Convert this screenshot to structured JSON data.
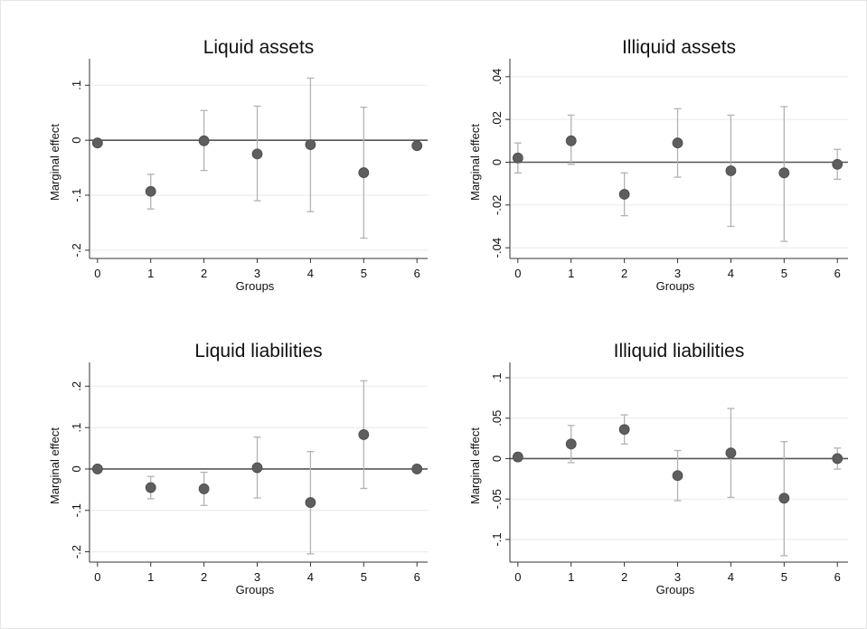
{
  "chart_data": [
    {
      "type": "scatter",
      "title": "Liquid assets",
      "xlabel": "Groups",
      "ylabel": "Marginal effect",
      "x": [
        0,
        1,
        2,
        3,
        4,
        5,
        6
      ],
      "xticks": [
        "0",
        "1",
        "2",
        "3",
        "4",
        "5",
        "6"
      ],
      "xlim": [
        -0.15,
        6.2
      ],
      "ylim": [
        -0.215,
        0.135
      ],
      "yticks": [
        0.1,
        0,
        -0.1,
        -0.2
      ],
      "ytick_labels": [
        ".1",
        "0",
        "-.1",
        "-.2"
      ],
      "estimates": [
        -0.005,
        -0.093,
        -0.001,
        -0.025,
        -0.008,
        -0.059,
        -0.01
      ],
      "ci_lower": [
        null,
        -0.125,
        -0.055,
        -0.11,
        -0.13,
        -0.178,
        null
      ],
      "ci_upper": [
        null,
        -0.062,
        0.054,
        0.062,
        0.113,
        0.06,
        null
      ],
      "reference_line": 0,
      "grid": true
    },
    {
      "type": "scatter",
      "title": "Illiquid assets",
      "xlabel": "Groups",
      "ylabel": "Marginal effect",
      "x": [
        0,
        1,
        2,
        3,
        4,
        5,
        6
      ],
      "xticks": [
        "0",
        "1",
        "2",
        "3",
        "4",
        "5",
        "6"
      ],
      "xlim": [
        -0.15,
        6.2
      ],
      "ylim": [
        -0.045,
        0.045
      ],
      "yticks": [
        0.04,
        0.02,
        0,
        -0.02,
        -0.04
      ],
      "ytick_labels": [
        ".04",
        ".02",
        "0",
        "-.02",
        "-.04"
      ],
      "estimates": [
        0.002,
        0.01,
        -0.015,
        0.009,
        -0.004,
        -0.005,
        -0.001
      ],
      "ci_lower": [
        -0.005,
        -0.001,
        -0.025,
        -0.007,
        -0.03,
        -0.037,
        -0.008
      ],
      "ci_upper": [
        0.009,
        0.022,
        -0.005,
        0.025,
        0.022,
        0.026,
        0.006
      ],
      "reference_line": 0,
      "grid": true
    },
    {
      "type": "scatter",
      "title": "Liquid liabilities",
      "xlabel": "Groups",
      "ylabel": "Marginal effect",
      "x": [
        0,
        1,
        2,
        3,
        4,
        5,
        6
      ],
      "xticks": [
        "0",
        "1",
        "2",
        "3",
        "4",
        "5",
        "6"
      ],
      "xlim": [
        -0.15,
        6.2
      ],
      "ylim": [
        -0.225,
        0.24
      ],
      "yticks": [
        0.2,
        0.1,
        0,
        -0.1,
        -0.2
      ],
      "ytick_labels": [
        ".2",
        ".1",
        "0",
        "-.1",
        "-.2"
      ],
      "estimates": [
        0.0,
        -0.045,
        -0.048,
        0.003,
        -0.081,
        0.083,
        0.0
      ],
      "ci_lower": [
        null,
        -0.072,
        -0.088,
        -0.07,
        -0.205,
        -0.047,
        null
      ],
      "ci_upper": [
        null,
        -0.018,
        -0.008,
        0.077,
        0.042,
        0.213,
        null
      ],
      "reference_line": 0,
      "grid": true
    },
    {
      "type": "scatter",
      "title": "Illiquid liabilities",
      "xlabel": "Groups",
      "ylabel": "Marginal effect",
      "x": [
        0,
        1,
        2,
        3,
        4,
        5,
        6
      ],
      "xticks": [
        "0",
        "1",
        "2",
        "3",
        "4",
        "5",
        "6"
      ],
      "xlim": [
        -0.15,
        6.2
      ],
      "ylim": [
        -0.128,
        0.11
      ],
      "yticks": [
        0.1,
        0.05,
        0,
        -0.05,
        -0.1
      ],
      "ytick_labels": [
        ".1",
        ".05",
        "0",
        "-.05",
        "-.1"
      ],
      "estimates": [
        0.002,
        0.018,
        0.036,
        -0.021,
        0.007,
        -0.049,
        0.0
      ],
      "ci_lower": [
        -0.003,
        -0.005,
        0.018,
        -0.052,
        -0.048,
        -0.12,
        -0.013
      ],
      "ci_upper": [
        0.007,
        0.041,
        0.054,
        0.01,
        0.062,
        0.021,
        0.013
      ],
      "reference_line": 0,
      "grid": true
    }
  ]
}
